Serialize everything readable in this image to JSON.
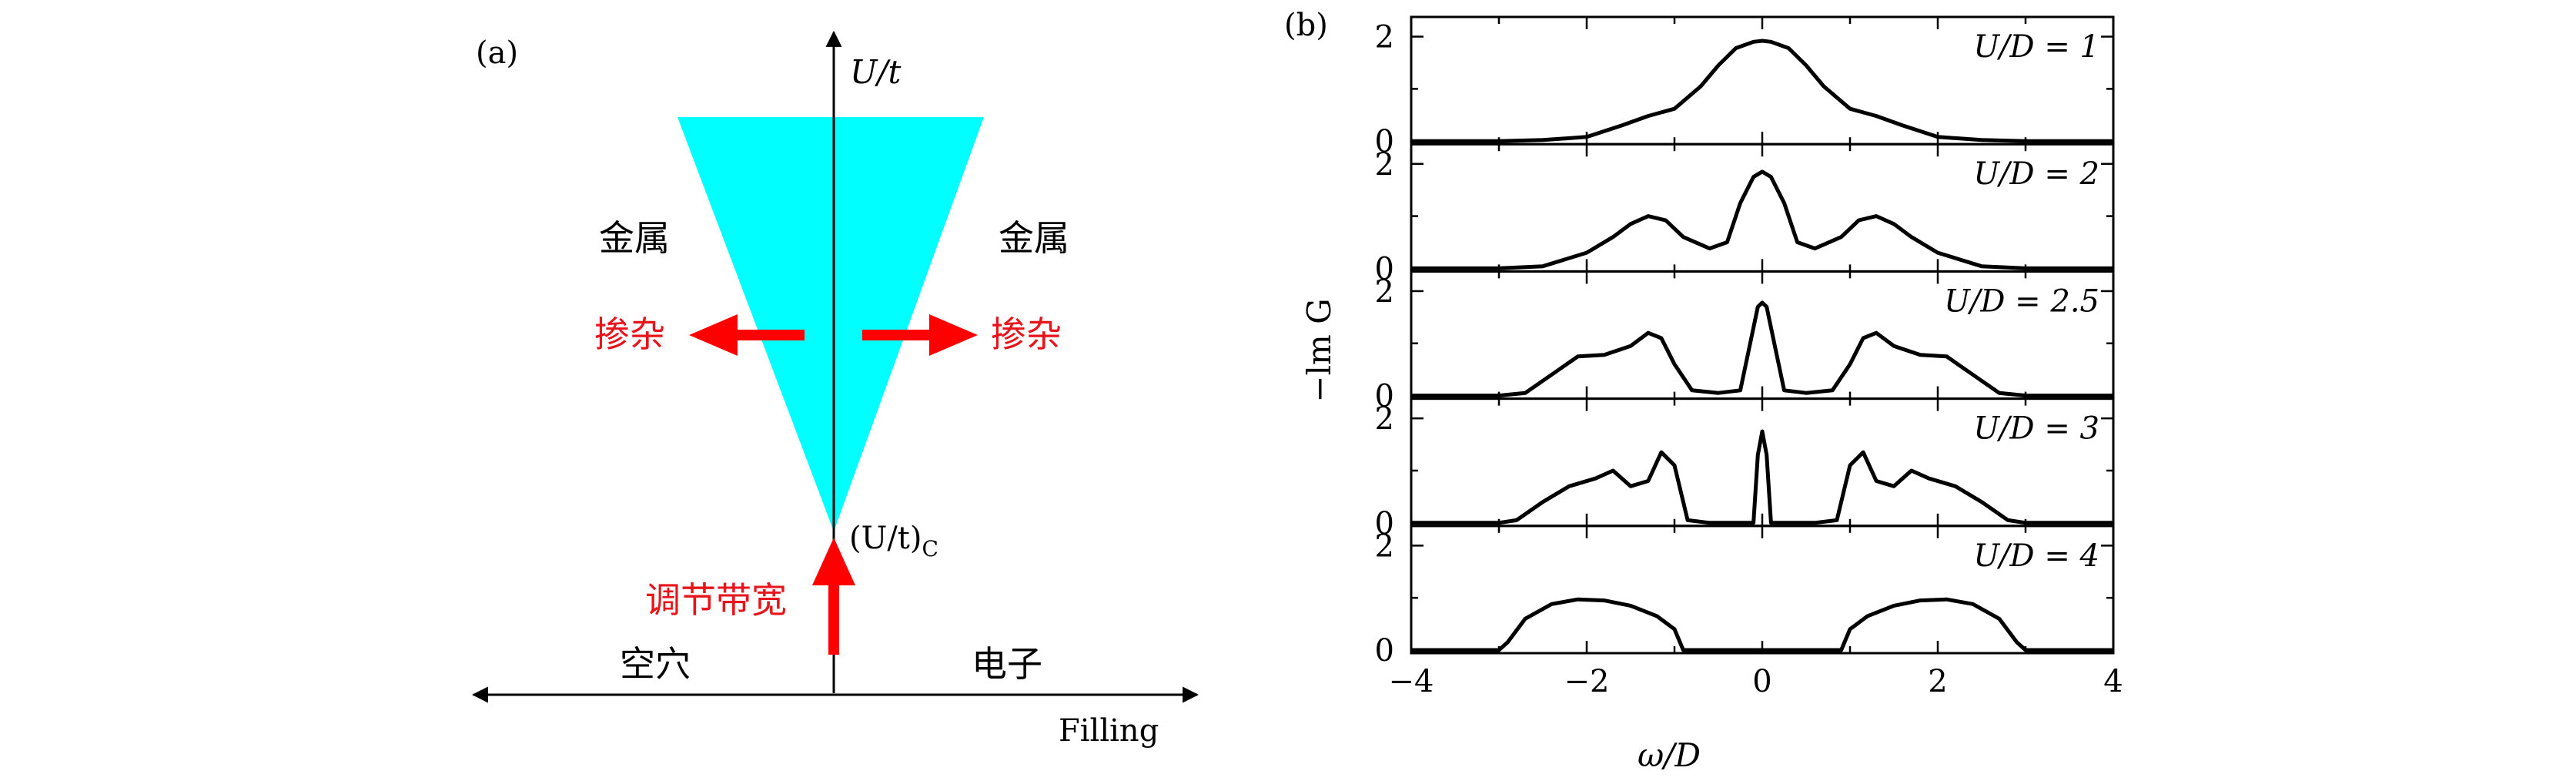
{
  "panel_a": {
    "label": "(a)",
    "y_axis_label": "U/t",
    "x_axis_label": "Filling",
    "critical_label": "(U/t)",
    "critical_subscript": "C",
    "metal_left": "金属",
    "metal_right": "金属",
    "doping_left": "掺杂",
    "doping_right": "掺杂",
    "bandwidth_tuning": "调节带宽",
    "hole": "空穴",
    "electron": "电子",
    "colors": {
      "insulator_region": "#00ffff",
      "arrow": "#ff0000",
      "text_red": "#e8141b",
      "axis": "#000000"
    }
  },
  "panel_b": {
    "label": "(b)",
    "xlabel": "ω/D",
    "ylabel": "−lm G",
    "x_ticks": [
      "−4",
      "−2",
      "0",
      "2",
      "4"
    ],
    "y_ticks": [
      "0",
      "2"
    ]
  },
  "chart_data": {
    "type": "line",
    "xlim": [
      -4,
      4
    ],
    "ylim": [
      0,
      2.2
    ],
    "xlabel": "ω/D",
    "ylabel": "−lm G",
    "series": [
      {
        "name": "U/D = 1",
        "x": [
          -4,
          -3,
          -2.5,
          -2,
          -1.6,
          -1.3,
          -1,
          -0.7,
          -0.5,
          -0.3,
          -0.1,
          0,
          0.1,
          0.3,
          0.5,
          0.7,
          1,
          1.3,
          1.6,
          2,
          2.5,
          3,
          4
        ],
        "y": [
          0,
          0,
          0.02,
          0.08,
          0.3,
          0.48,
          0.62,
          1.05,
          1.45,
          1.78,
          1.9,
          1.92,
          1.9,
          1.78,
          1.45,
          1.05,
          0.62,
          0.48,
          0.3,
          0.08,
          0.02,
          0,
          0
        ]
      },
      {
        "name": "U/D = 2",
        "x": [
          -4,
          -3,
          -2.5,
          -2,
          -1.7,
          -1.5,
          -1.3,
          -1.1,
          -0.9,
          -0.6,
          -0.4,
          -0.25,
          -0.1,
          0,
          0.1,
          0.25,
          0.4,
          0.6,
          0.9,
          1.1,
          1.3,
          1.5,
          1.7,
          2,
          2.5,
          3,
          4
        ],
        "y": [
          0,
          0,
          0.04,
          0.3,
          0.6,
          0.85,
          1.0,
          0.92,
          0.6,
          0.38,
          0.5,
          1.25,
          1.75,
          1.85,
          1.75,
          1.25,
          0.5,
          0.38,
          0.6,
          0.92,
          1.0,
          0.85,
          0.6,
          0.3,
          0.04,
          0,
          0
        ]
      },
      {
        "name": "U/D = 2.5",
        "x": [
          -4,
          -3,
          -2.7,
          -2.4,
          -2.1,
          -1.8,
          -1.5,
          -1.3,
          -1.15,
          -1.0,
          -0.8,
          -0.5,
          -0.25,
          -0.15,
          -0.05,
          0,
          0.05,
          0.15,
          0.25,
          0.5,
          0.8,
          1.0,
          1.15,
          1.3,
          1.5,
          1.8,
          2.1,
          2.4,
          2.7,
          3,
          4
        ],
        "y": [
          0,
          0,
          0.05,
          0.4,
          0.75,
          0.78,
          0.95,
          1.2,
          1.1,
          0.6,
          0.1,
          0.05,
          0.1,
          0.9,
          1.7,
          1.78,
          1.7,
          0.9,
          0.1,
          0.05,
          0.1,
          0.6,
          1.1,
          1.2,
          0.95,
          0.78,
          0.75,
          0.4,
          0.05,
          0,
          0
        ]
      },
      {
        "name": "U/D = 3",
        "x": [
          -4,
          -3.0,
          -2.8,
          -2.5,
          -2.2,
          -1.9,
          -1.7,
          -1.5,
          -1.3,
          -1.15,
          -1.0,
          -0.85,
          -0.6,
          -0.1,
          -0.05,
          0,
          0.05,
          0.1,
          0.6,
          0.85,
          1.0,
          1.15,
          1.3,
          1.5,
          1.7,
          1.9,
          2.2,
          2.5,
          2.8,
          3.0,
          4
        ],
        "y": [
          0,
          0,
          0.05,
          0.4,
          0.7,
          0.85,
          1.0,
          0.7,
          0.8,
          1.35,
          1.1,
          0.05,
          0,
          0,
          1.3,
          1.75,
          1.3,
          0,
          0,
          0.05,
          1.1,
          1.35,
          0.8,
          0.7,
          1.0,
          0.85,
          0.7,
          0.4,
          0.05,
          0,
          0
        ]
      },
      {
        "name": "U/D = 4",
        "x": [
          -4,
          -3.0,
          -2.9,
          -2.7,
          -2.4,
          -2.1,
          -1.8,
          -1.5,
          -1.2,
          -1.0,
          -0.9,
          -0.5,
          0,
          0.5,
          0.9,
          1.0,
          1.2,
          1.5,
          1.8,
          2.1,
          2.4,
          2.7,
          2.9,
          3.0,
          4
        ],
        "y": [
          0,
          0,
          0.15,
          0.6,
          0.88,
          0.97,
          0.95,
          0.85,
          0.65,
          0.4,
          0,
          0,
          0,
          0,
          0,
          0.4,
          0.65,
          0.85,
          0.95,
          0.97,
          0.88,
          0.6,
          0.15,
          0,
          0
        ]
      }
    ],
    "legend": "in-panel labels, top-right"
  }
}
